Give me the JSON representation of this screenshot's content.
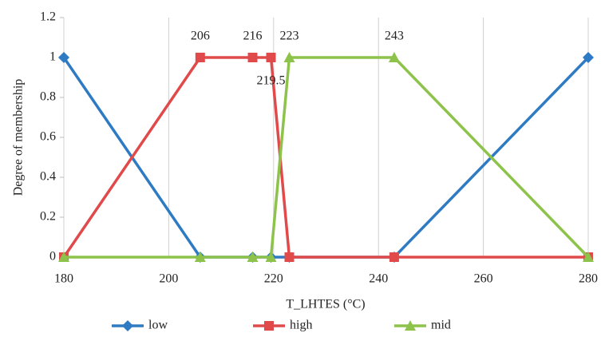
{
  "chart_data": {
    "type": "line",
    "x_label": "T_LHTES (°C)",
    "y_label": "Degree of membership",
    "x": [
      180,
      206,
      216,
      219.5,
      223,
      243,
      280
    ],
    "series": [
      {
        "name": "low",
        "color": "#2e7bc4",
        "marker": "diamond",
        "values": [
          1,
          0,
          0,
          0,
          0,
          0,
          1
        ]
      },
      {
        "name": "high",
        "color": "#e04a4a",
        "marker": "square",
        "values": [
          0,
          1,
          1,
          1,
          0,
          0,
          0
        ]
      },
      {
        "name": "mid",
        "color": "#8dc24b",
        "marker": "triangle",
        "values": [
          0,
          0,
          0,
          0,
          1,
          1,
          0
        ]
      }
    ],
    "annotations": [
      {
        "value": 206,
        "label": "206",
        "position": "above"
      },
      {
        "value": 216,
        "label": "216",
        "position": "above"
      },
      {
        "value": 223,
        "label": "223",
        "position": "above"
      },
      {
        "value": 243,
        "label": "243",
        "position": "above"
      },
      {
        "value": 219.5,
        "label": "219.5",
        "position": "below"
      }
    ],
    "xlim": [
      180,
      280
    ],
    "xticks": [
      180,
      200,
      220,
      240,
      260,
      280
    ],
    "ylim": [
      0,
      1.2
    ],
    "yticks": [
      0,
      0.2,
      0.4,
      0.6,
      0.8,
      1,
      1.2
    ],
    "grid": "x",
    "legend": "bottom"
  }
}
